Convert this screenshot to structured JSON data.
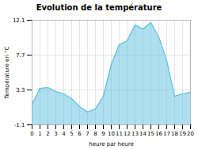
{
  "chart_data": {
    "type": "area",
    "title": "Evolution de la température",
    "xlabel": "heure par heure",
    "ylabel": "Température en °C",
    "x": [
      0,
      1,
      2,
      3,
      4,
      5,
      6,
      7,
      8,
      9,
      10,
      11,
      12,
      13,
      14,
      15,
      16,
      17,
      18,
      19,
      20
    ],
    "values": [
      1.5,
      3.5,
      3.6,
      3.1,
      2.8,
      2.2,
      1.2,
      0.5,
      0.9,
      2.5,
      6.5,
      9.0,
      9.5,
      11.5,
      11.0,
      11.8,
      10.0,
      7.0,
      2.5,
      2.8,
      3.0
    ],
    "color": "#5bbfdf",
    "xlim": [
      0,
      20
    ],
    "xticks": [
      0,
      1,
      2,
      3,
      4,
      5,
      6,
      7,
      8,
      9,
      10,
      11,
      12,
      13,
      14,
      15,
      16,
      17,
      18,
      19,
      20
    ],
    "ylim": [
      -1.1,
      12.1
    ],
    "yticks": [
      -1.1,
      3.3,
      7.7,
      12.1
    ],
    "grid": true
  }
}
